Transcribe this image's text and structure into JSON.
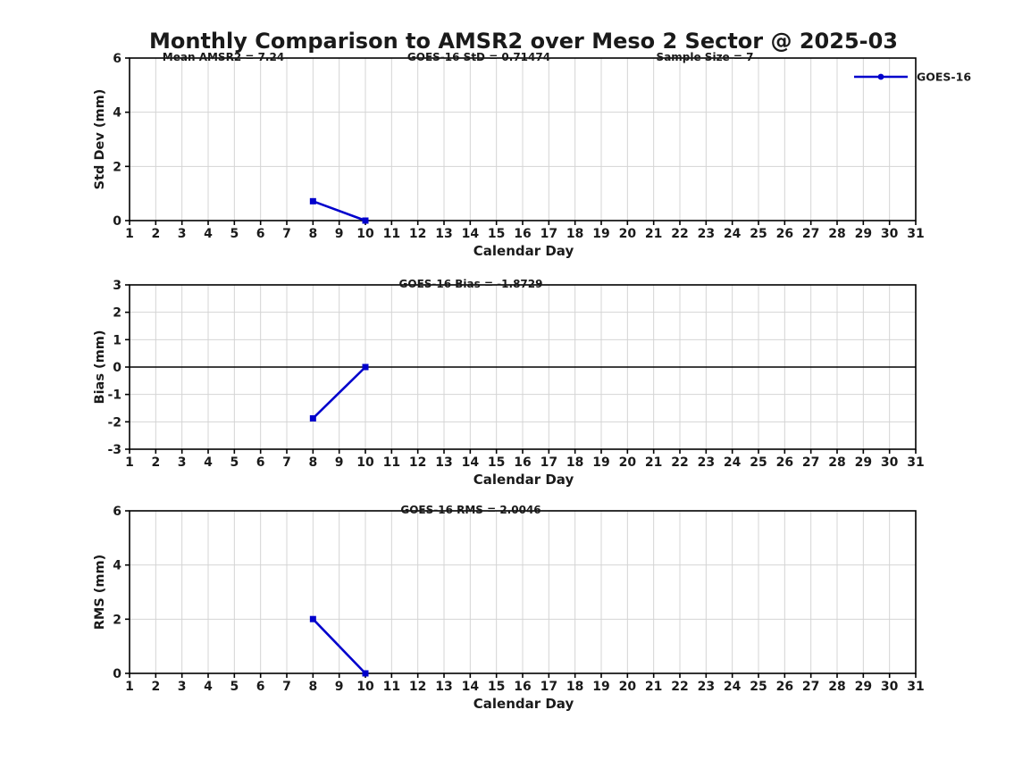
{
  "title": "Monthly Comparison to AMSR2 over Meso 2 Sector @ 2025-03",
  "colors": {
    "series_blue": "#0000CC",
    "grid": "#D4D4D4",
    "axis": "#000000",
    "text": "#1A1A1A"
  },
  "chart_data": [
    {
      "type": "line",
      "annotations": [
        {
          "text": "Mean AMSR2 = 7.24"
        },
        {
          "text": "GOES-16 StD = 0.71474"
        },
        {
          "text": "Sample Size = 7"
        }
      ],
      "ylabel": "Std Dev (mm)",
      "xlabel": "Calendar Day",
      "ylim": [
        0,
        6
      ],
      "yticks": [
        0,
        2,
        4,
        6
      ],
      "xlim": [
        1,
        31
      ],
      "xticks": [
        1,
        2,
        3,
        4,
        5,
        6,
        7,
        8,
        9,
        10,
        11,
        12,
        13,
        14,
        15,
        16,
        17,
        18,
        19,
        20,
        21,
        22,
        23,
        24,
        25,
        26,
        27,
        28,
        29,
        30,
        31
      ],
      "grid": true,
      "zero_line": false,
      "legend": {
        "label": "GOES-16",
        "position": "outside-top-right"
      },
      "series": [
        {
          "name": "GOES-16",
          "x": [
            8,
            10
          ],
          "y": [
            0.71474,
            0.0
          ]
        }
      ]
    },
    {
      "type": "line",
      "annotations": [
        {
          "text": "GOES-16 Bias = -1.8729"
        }
      ],
      "ylabel": "Bias (mm)",
      "xlabel": "Calendar Day",
      "ylim": [
        -3,
        3
      ],
      "yticks": [
        -3,
        -2,
        -1,
        0,
        1,
        2,
        3
      ],
      "xlim": [
        1,
        31
      ],
      "xticks": [
        1,
        2,
        3,
        4,
        5,
        6,
        7,
        8,
        9,
        10,
        11,
        12,
        13,
        14,
        15,
        16,
        17,
        18,
        19,
        20,
        21,
        22,
        23,
        24,
        25,
        26,
        27,
        28,
        29,
        30,
        31
      ],
      "grid": true,
      "zero_line": true,
      "series": [
        {
          "name": "GOES-16",
          "x": [
            8,
            10
          ],
          "y": [
            -1.8729,
            0.0
          ]
        }
      ]
    },
    {
      "type": "line",
      "annotations": [
        {
          "text": "GOES-16 RMS = 2.0046"
        }
      ],
      "ylabel": "RMS (mm)",
      "xlabel": "Calendar Day",
      "ylim": [
        0,
        6
      ],
      "yticks": [
        0,
        2,
        4,
        6
      ],
      "xlim": [
        1,
        31
      ],
      "xticks": [
        1,
        2,
        3,
        4,
        5,
        6,
        7,
        8,
        9,
        10,
        11,
        12,
        13,
        14,
        15,
        16,
        17,
        18,
        19,
        20,
        21,
        22,
        23,
        24,
        25,
        26,
        27,
        28,
        29,
        30,
        31
      ],
      "grid": true,
      "zero_line": false,
      "series": [
        {
          "name": "GOES-16",
          "x": [
            8,
            10
          ],
          "y": [
            2.0046,
            0.0
          ]
        }
      ]
    }
  ]
}
